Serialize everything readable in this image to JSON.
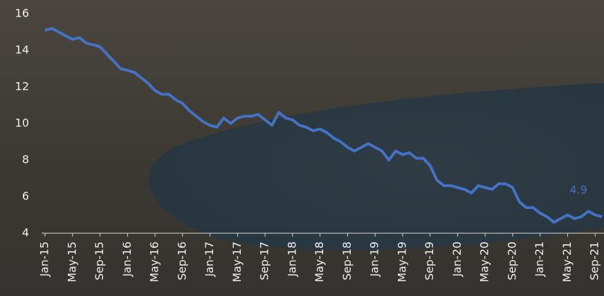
{
  "chart_data": {
    "type": "line",
    "color": "#4472c4",
    "categories": [
      "Jan-15",
      null,
      null,
      null,
      "May-15",
      null,
      null,
      null,
      "Sep-15",
      null,
      null,
      null,
      "Jan-16",
      null,
      null,
      null,
      "May-16",
      null,
      null,
      null,
      "Sep-16",
      null,
      null,
      null,
      "Jan-17",
      null,
      null,
      null,
      "May-17",
      null,
      null,
      null,
      "Sep-17",
      null,
      null,
      null,
      "Jan-18",
      null,
      null,
      null,
      "May-18",
      null,
      null,
      null,
      "Sep-18",
      null,
      null,
      null,
      "Jan-19",
      null,
      null,
      null,
      "May-19",
      null,
      null,
      null,
      "Sep-19",
      null,
      null,
      null,
      "Jan-20",
      null,
      null,
      null,
      "May-20",
      null,
      null,
      null,
      "Sep-20",
      null,
      null,
      null,
      "Jan-21",
      null,
      null,
      null,
      "May-21",
      null,
      null,
      null,
      "Sep-21",
      null
    ],
    "values": [
      15.1,
      15.2,
      15.0,
      14.8,
      14.6,
      14.7,
      14.4,
      14.3,
      14.2,
      13.8,
      13.4,
      13.0,
      12.9,
      12.8,
      12.5,
      12.2,
      11.8,
      11.6,
      11.6,
      11.3,
      11.1,
      10.7,
      10.4,
      10.1,
      9.9,
      9.8,
      10.3,
      10.0,
      10.3,
      10.4,
      10.4,
      10.5,
      10.2,
      9.9,
      10.6,
      10.3,
      10.2,
      9.9,
      9.8,
      9.6,
      9.7,
      9.5,
      9.2,
      9.0,
      8.7,
      8.5,
      8.7,
      8.9,
      8.7,
      8.5,
      8.0,
      8.5,
      8.3,
      8.4,
      8.1,
      8.1,
      7.7,
      6.9,
      6.6,
      6.6,
      6.5,
      6.4,
      6.2,
      6.6,
      6.5,
      6.4,
      6.7,
      6.7,
      6.5,
      5.7,
      5.4,
      5.4,
      5.1,
      4.9,
      4.6,
      4.8,
      5.0,
      4.8,
      4.9,
      5.2,
      5.0,
      4.9
    ],
    "ylim": [
      4,
      16
    ],
    "yticks": [
      4,
      6,
      8,
      10,
      12,
      14,
      16
    ],
    "end_label": true
  }
}
